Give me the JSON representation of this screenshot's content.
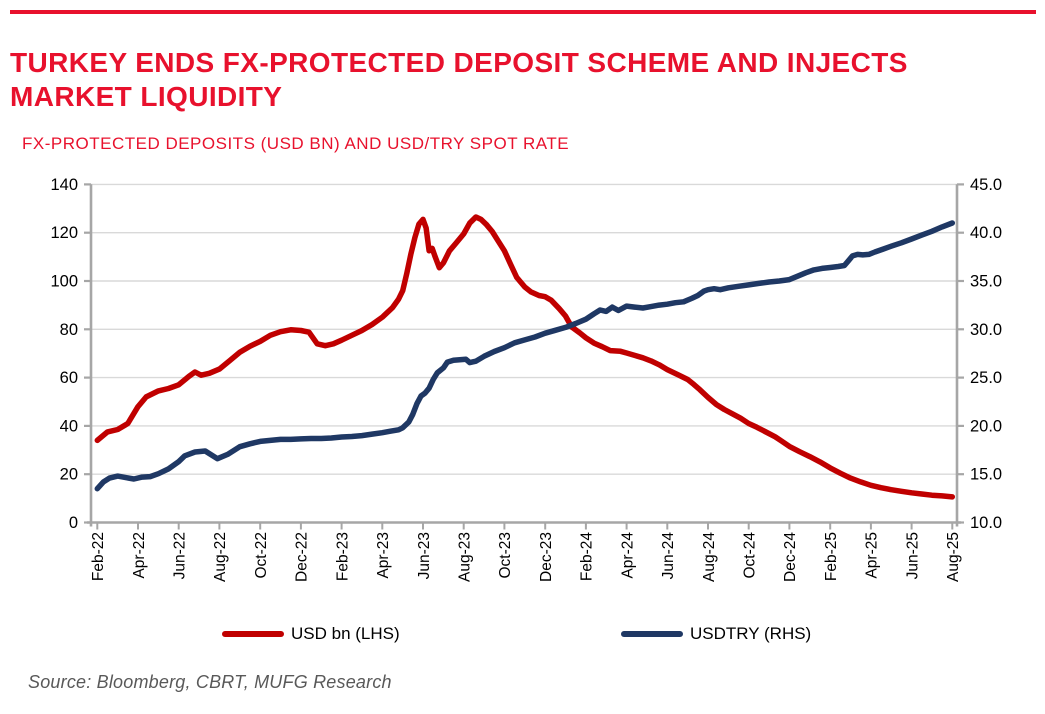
{
  "title": {
    "line1": "TURKEY ENDS FX-PROTECTED DEPOSIT SCHEME AND INJECTS",
    "line2": "MARKET LIQUIDITY"
  },
  "chart_subtitle": "FX-PROTECTED DEPOSITS (USD BN) AND USD/TRY SPOT RATE",
  "legend": {
    "items": [
      {
        "label": "USD bn (LHS)",
        "color": "#C00000"
      },
      {
        "label": "USDTRY (RHS)",
        "color": "#1F3864"
      }
    ]
  },
  "source_note": "Source: Bloomberg, CBRT, MUFG Research",
  "colors": {
    "accent_red": "#E8112D",
    "series_red": "#C00000",
    "series_navy": "#1F3864",
    "grid": "#D9D9D9",
    "axis": "#A6A6A6",
    "tick_text": "#000000"
  },
  "chart_data": {
    "type": "line",
    "title": "FX-PROTECTED DEPOSITS (USD BN) AND USD/TRY SPOT RATE",
    "grid": true,
    "legend_position": "bottom",
    "x_axis": {
      "unit": "months since Feb-22",
      "months_total": 42,
      "tick_month_step": 2,
      "tick_labels": [
        "Feb-22",
        "Apr-22",
        "Jun-22",
        "Aug-22",
        "Oct-22",
        "Dec-22",
        "Feb-23",
        "Apr-23",
        "Jun-23",
        "Aug-23",
        "Oct-23",
        "Dec-23",
        "Feb-24",
        "Apr-24",
        "Jun-24",
        "Aug-24",
        "Oct-24",
        "Dec-24",
        "Feb-25",
        "Apr-25",
        "Jun-25",
        "Aug-25"
      ]
    },
    "left_axis": {
      "label": "USD bn",
      "min": 0,
      "max": 140,
      "step": 20,
      "decimals": 0
    },
    "right_axis": {
      "label": "USDTRY",
      "min": 10,
      "max": 45,
      "step": 5,
      "decimals": 1
    },
    "series": [
      {
        "name": "USD bn (LHS)",
        "axis": "left",
        "color": "#C00000",
        "points": [
          [
            0,
            34
          ],
          [
            0.5,
            37.5
          ],
          [
            1,
            38.5
          ],
          [
            1.5,
            41
          ],
          [
            2,
            48
          ],
          [
            2.4,
            52
          ],
          [
            3,
            54.5
          ],
          [
            3.5,
            55.5
          ],
          [
            4,
            57
          ],
          [
            4.5,
            60.5
          ],
          [
            4.8,
            62.3
          ],
          [
            5.1,
            61
          ],
          [
            5.5,
            61.8
          ],
          [
            6,
            63.5
          ],
          [
            6.5,
            67
          ],
          [
            7,
            70.5
          ],
          [
            7.5,
            73
          ],
          [
            8,
            75
          ],
          [
            8.5,
            77.5
          ],
          [
            9,
            79
          ],
          [
            9.5,
            79.8
          ],
          [
            10,
            79.5
          ],
          [
            10.4,
            78.8
          ],
          [
            10.8,
            74
          ],
          [
            11.2,
            73.2
          ],
          [
            11.6,
            74
          ],
          [
            12,
            75.5
          ],
          [
            12.5,
            77.5
          ],
          [
            13,
            79.5
          ],
          [
            13.5,
            82
          ],
          [
            14,
            85
          ],
          [
            14.5,
            89
          ],
          [
            14.8,
            92.5
          ],
          [
            15,
            96
          ],
          [
            15.2,
            103
          ],
          [
            15.4,
            111
          ],
          [
            15.6,
            118
          ],
          [
            15.8,
            123.5
          ],
          [
            16,
            125.5
          ],
          [
            16.15,
            122
          ],
          [
            16.3,
            112.5
          ],
          [
            16.45,
            113.5
          ],
          [
            16.6,
            110
          ],
          [
            16.8,
            105.5
          ],
          [
            17,
            107.5
          ],
          [
            17.3,
            112.5
          ],
          [
            17.6,
            115.5
          ],
          [
            18,
            119.5
          ],
          [
            18.3,
            124
          ],
          [
            18.6,
            126.5
          ],
          [
            18.85,
            125.5
          ],
          [
            19.1,
            123.5
          ],
          [
            19.4,
            120.5
          ],
          [
            19.7,
            116.5
          ],
          [
            20,
            112.5
          ],
          [
            20.3,
            107
          ],
          [
            20.6,
            101.5
          ],
          [
            21,
            97.5
          ],
          [
            21.3,
            95.5
          ],
          [
            21.7,
            94
          ],
          [
            22,
            93.5
          ],
          [
            22.3,
            92
          ],
          [
            22.7,
            88.5
          ],
          [
            23,
            85.5
          ],
          [
            23.3,
            81
          ],
          [
            23.7,
            78.5
          ],
          [
            24,
            76.5
          ],
          [
            24.4,
            74.3
          ],
          [
            24.8,
            72.8
          ],
          [
            25.2,
            71.2
          ],
          [
            25.7,
            70.9
          ],
          [
            26,
            70.2
          ],
          [
            26.4,
            69.2
          ],
          [
            26.8,
            68.2
          ],
          [
            27.2,
            66.9
          ],
          [
            27.6,
            65.3
          ],
          [
            28,
            63.3
          ],
          [
            28.5,
            61.3
          ],
          [
            29,
            59.2
          ],
          [
            29.3,
            57.2
          ],
          [
            29.6,
            55
          ],
          [
            30,
            51.8
          ],
          [
            30.4,
            48.9
          ],
          [
            30.8,
            46.8
          ],
          [
            31.2,
            45
          ],
          [
            31.6,
            43.2
          ],
          [
            32,
            41
          ],
          [
            32.4,
            39.4
          ],
          [
            32.8,
            37.7
          ],
          [
            33.3,
            35.5
          ],
          [
            33.6,
            33.8
          ],
          [
            34,
            31.5
          ],
          [
            34.5,
            29.3
          ],
          [
            35,
            27.3
          ],
          [
            35.5,
            25.1
          ],
          [
            36,
            22.6
          ],
          [
            36.5,
            20.4
          ],
          [
            37,
            18.4
          ],
          [
            37.5,
            16.8
          ],
          [
            38,
            15.4
          ],
          [
            38.5,
            14.4
          ],
          [
            39,
            13.6
          ],
          [
            39.5,
            12.9
          ],
          [
            40,
            12.3
          ],
          [
            40.5,
            11.8
          ],
          [
            41,
            11.3
          ],
          [
            41.5,
            11
          ],
          [
            42,
            10.6
          ]
        ]
      },
      {
        "name": "USDTRY (RHS)",
        "axis": "right",
        "color": "#1F3864",
        "points": [
          [
            0,
            13.5
          ],
          [
            0.3,
            14.2
          ],
          [
            0.6,
            14.6
          ],
          [
            1,
            14.8
          ],
          [
            1.4,
            14.65
          ],
          [
            1.8,
            14.5
          ],
          [
            2.2,
            14.7
          ],
          [
            2.6,
            14.75
          ],
          [
            3,
            15.05
          ],
          [
            3.5,
            15.55
          ],
          [
            4,
            16.3
          ],
          [
            4.3,
            16.9
          ],
          [
            4.8,
            17.3
          ],
          [
            5.3,
            17.4
          ],
          [
            5.9,
            16.6
          ],
          [
            6.4,
            17.05
          ],
          [
            7,
            17.85
          ],
          [
            7.5,
            18.15
          ],
          [
            8,
            18.4
          ],
          [
            8.5,
            18.5
          ],
          [
            9,
            18.6
          ],
          [
            9.5,
            18.6
          ],
          [
            10,
            18.65
          ],
          [
            10.5,
            18.7
          ],
          [
            11,
            18.7
          ],
          [
            11.5,
            18.75
          ],
          [
            12,
            18.85
          ],
          [
            12.5,
            18.9
          ],
          [
            13,
            19
          ],
          [
            13.5,
            19.15
          ],
          [
            14,
            19.3
          ],
          [
            14.4,
            19.45
          ],
          [
            14.8,
            19.6
          ],
          [
            15,
            19.8
          ],
          [
            15.3,
            20.4
          ],
          [
            15.5,
            21.2
          ],
          [
            15.7,
            22.3
          ],
          [
            15.9,
            23.1
          ],
          [
            16.1,
            23.4
          ],
          [
            16.3,
            23.9
          ],
          [
            16.5,
            24.8
          ],
          [
            16.7,
            25.5
          ],
          [
            17,
            26
          ],
          [
            17.2,
            26.6
          ],
          [
            17.5,
            26.8
          ],
          [
            17.8,
            26.85
          ],
          [
            18.1,
            26.9
          ],
          [
            18.3,
            26.55
          ],
          [
            18.6,
            26.7
          ],
          [
            19,
            27.2
          ],
          [
            19.5,
            27.7
          ],
          [
            20,
            28.1
          ],
          [
            20.5,
            28.6
          ],
          [
            21,
            28.9
          ],
          [
            21.5,
            29.2
          ],
          [
            22,
            29.6
          ],
          [
            22.5,
            29.9
          ],
          [
            23,
            30.2
          ],
          [
            23.5,
            30.6
          ],
          [
            24,
            31.05
          ],
          [
            24.4,
            31.6
          ],
          [
            24.7,
            32
          ],
          [
            25,
            31.85
          ],
          [
            25.3,
            32.3
          ],
          [
            25.6,
            31.95
          ],
          [
            26,
            32.4
          ],
          [
            26.4,
            32.3
          ],
          [
            26.8,
            32.2
          ],
          [
            27.2,
            32.35
          ],
          [
            27.6,
            32.5
          ],
          [
            28,
            32.6
          ],
          [
            28.4,
            32.75
          ],
          [
            28.8,
            32.85
          ],
          [
            29.2,
            33.2
          ],
          [
            29.5,
            33.5
          ],
          [
            29.8,
            33.95
          ],
          [
            30,
            34.1
          ],
          [
            30.3,
            34.2
          ],
          [
            30.6,
            34.1
          ],
          [
            31,
            34.3
          ],
          [
            31.5,
            34.45
          ],
          [
            32,
            34.6
          ],
          [
            32.5,
            34.75
          ],
          [
            33,
            34.9
          ],
          [
            33.5,
            35
          ],
          [
            34,
            35.15
          ],
          [
            34.4,
            35.5
          ],
          [
            34.8,
            35.85
          ],
          [
            35.2,
            36.15
          ],
          [
            35.6,
            36.3
          ],
          [
            36,
            36.4
          ],
          [
            36.4,
            36.5
          ],
          [
            36.7,
            36.6
          ],
          [
            36.9,
            37.1
          ],
          [
            37.1,
            37.6
          ],
          [
            37.35,
            37.75
          ],
          [
            37.6,
            37.7
          ],
          [
            37.9,
            37.75
          ],
          [
            38.2,
            38
          ],
          [
            38.6,
            38.3
          ],
          [
            39,
            38.6
          ],
          [
            39.5,
            38.95
          ],
          [
            40,
            39.35
          ],
          [
            40.5,
            39.75
          ],
          [
            41,
            40.15
          ],
          [
            41.5,
            40.6
          ],
          [
            42,
            41
          ]
        ]
      }
    ]
  }
}
